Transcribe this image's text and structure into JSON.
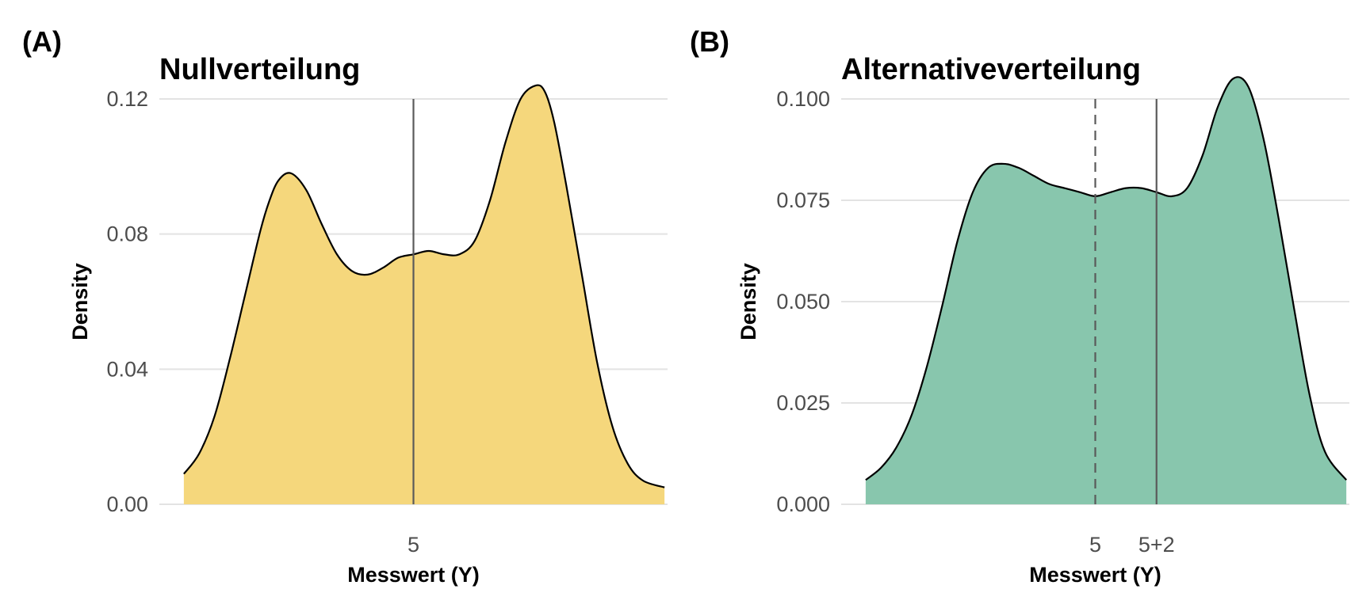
{
  "chart_data": [
    {
      "panel": "(A)",
      "type": "area",
      "title": "Nullverteilung",
      "xlabel": "Messwert (Y)",
      "ylabel": "Density",
      "xlim": [
        -3.3,
        13.3
      ],
      "ylim": [
        0,
        0.12
      ],
      "yticks": [
        0.0,
        0.04,
        0.08,
        0.12
      ],
      "ytick_labels": [
        "0.00",
        "0.04",
        "0.08",
        "0.12"
      ],
      "xticks": [
        5
      ],
      "xtick_labels": [
        "5"
      ],
      "fill": "#F5D77C",
      "grid": "horizontal",
      "x": [
        -2.5,
        -2,
        -1.5,
        -1,
        -0.5,
        0,
        0.3,
        0.6,
        1,
        1.5,
        2,
        2.5,
        3,
        3.5,
        4,
        4.5,
        5,
        5.5,
        6,
        6.5,
        7,
        7.5,
        8,
        8.5,
        9,
        9.3,
        9.6,
        10,
        10.5,
        11,
        11.5,
        12,
        12.5,
        13.2
      ],
      "y": [
        0.009,
        0.015,
        0.026,
        0.043,
        0.062,
        0.081,
        0.09,
        0.096,
        0.098,
        0.093,
        0.083,
        0.074,
        0.069,
        0.068,
        0.07,
        0.073,
        0.074,
        0.075,
        0.074,
        0.074,
        0.078,
        0.09,
        0.107,
        0.12,
        0.124,
        0.122,
        0.113,
        0.094,
        0.068,
        0.042,
        0.023,
        0.012,
        0.007,
        0.005
      ],
      "vlines": [
        {
          "x": 5,
          "style": "solid"
        }
      ]
    },
    {
      "panel": "(B)",
      "type": "area",
      "title": "Alternativeverteilung",
      "xlabel": "Messwert (Y)",
      "ylabel": "Density",
      "xlim": [
        -3.3,
        13.3
      ],
      "ylim": [
        0,
        0.1
      ],
      "yticks": [
        0.0,
        0.025,
        0.05,
        0.075,
        0.1
      ],
      "ytick_labels": [
        "0.000",
        "0.025",
        "0.050",
        "0.075",
        "0.100"
      ],
      "xticks": [
        5,
        7
      ],
      "xtick_labels": [
        "5",
        "5+2"
      ],
      "fill": "#88C6AD",
      "grid": "horizontal",
      "x": [
        -2.5,
        -2,
        -1.5,
        -1,
        -0.5,
        0,
        0.5,
        1,
        1.5,
        2,
        2.5,
        3,
        3.5,
        4,
        4.5,
        5,
        5.5,
        6,
        6.5,
        7,
        7.5,
        8,
        8.5,
        9,
        9.5,
        10,
        10.5,
        11,
        11.5,
        12,
        12.5,
        13.2
      ],
      "y": [
        0.006,
        0.009,
        0.014,
        0.022,
        0.034,
        0.049,
        0.065,
        0.077,
        0.083,
        0.084,
        0.083,
        0.081,
        0.079,
        0.078,
        0.077,
        0.076,
        0.077,
        0.078,
        0.078,
        0.077,
        0.076,
        0.078,
        0.086,
        0.098,
        0.105,
        0.103,
        0.09,
        0.07,
        0.048,
        0.027,
        0.013,
        0.006
      ],
      "vlines": [
        {
          "x": 5,
          "style": "dashed"
        },
        {
          "x": 7,
          "style": "solid"
        }
      ]
    }
  ]
}
